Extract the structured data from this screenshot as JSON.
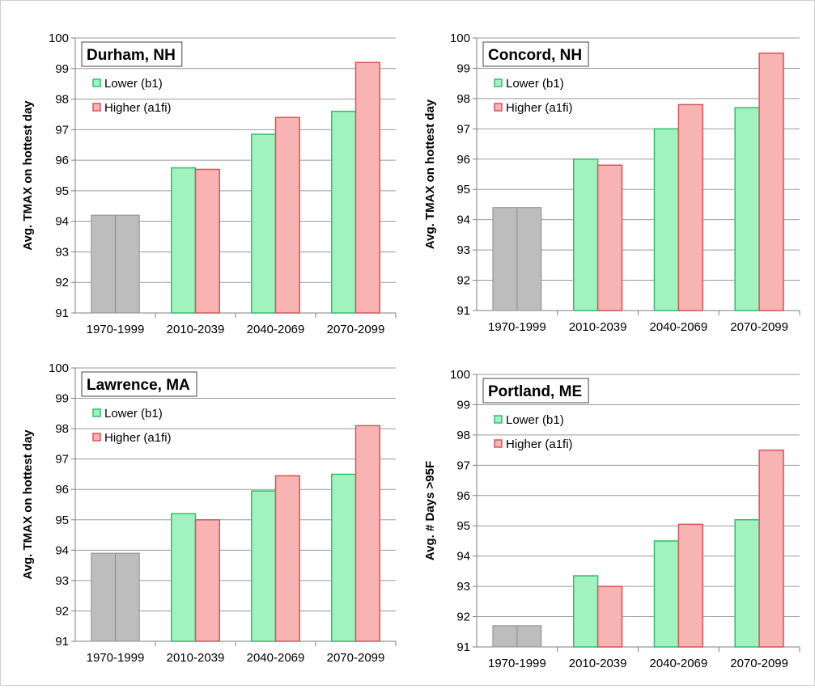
{
  "chart_data": [
    {
      "type": "bar",
      "title": "Durham, NH",
      "ylabel": "Avg. TMAX on hottest day",
      "xlabel": "",
      "ylim": [
        91,
        100
      ],
      "yticks": [
        91,
        92,
        93,
        94,
        95,
        96,
        97,
        98,
        99,
        100
      ],
      "categories": [
        "1970-1999",
        "2010-2039",
        "2040-2069",
        "2070-2099"
      ],
      "historical": {
        "category": "1970-1999",
        "value": 94.2
      },
      "series": [
        {
          "name": "Lower (b1)",
          "values": [
            null,
            95.75,
            96.85,
            97.6
          ]
        },
        {
          "name": "Higher (a1fi)",
          "values": [
            null,
            95.7,
            97.4,
            99.2
          ]
        }
      ],
      "grid": true,
      "legend": "top-left"
    },
    {
      "type": "bar",
      "title": "Concord, NH",
      "ylabel": "Avg. TMAX on hottest day",
      "xlabel": "",
      "ylim": [
        91,
        100
      ],
      "yticks": [
        91,
        92,
        93,
        94,
        95,
        96,
        97,
        98,
        99,
        100
      ],
      "categories": [
        "1970-1999",
        "2010-2039",
        "2040-2069",
        "2070-2099"
      ],
      "historical": {
        "category": "1970-1999",
        "value": 94.4
      },
      "series": [
        {
          "name": "Lower (b1)",
          "values": [
            null,
            96.0,
            97.0,
            97.7
          ]
        },
        {
          "name": "Higher (a1fi)",
          "values": [
            null,
            95.8,
            97.8,
            99.5
          ]
        }
      ],
      "grid": true,
      "legend": "top-left"
    },
    {
      "type": "bar",
      "title": "Lawrence, MA",
      "ylabel": "Avg. TMAX on hottest day",
      "xlabel": "",
      "ylim": [
        91,
        100
      ],
      "yticks": [
        91,
        92,
        93,
        94,
        95,
        96,
        97,
        98,
        99,
        100
      ],
      "categories": [
        "1970-1999",
        "2010-2039",
        "2040-2069",
        "2070-2099"
      ],
      "historical": {
        "category": "1970-1999",
        "value": 93.9
      },
      "series": [
        {
          "name": "Lower (b1)",
          "values": [
            null,
            95.2,
            95.95,
            96.5
          ]
        },
        {
          "name": "Higher (a1fi)",
          "values": [
            null,
            95.0,
            96.45,
            98.1
          ]
        }
      ],
      "grid": true,
      "legend": "top-left"
    },
    {
      "type": "bar",
      "title": "Portland, ME",
      "ylabel": "Avg. # Days >95F",
      "xlabel": "",
      "ylim": [
        91,
        100
      ],
      "yticks": [
        91,
        92,
        93,
        94,
        95,
        96,
        97,
        98,
        99,
        100
      ],
      "categories": [
        "1970-1999",
        "2010-2039",
        "2040-2069",
        "2070-2099"
      ],
      "historical": {
        "category": "1970-1999",
        "value": 91.7
      },
      "series": [
        {
          "name": "Lower (b1)",
          "values": [
            null,
            93.35,
            94.5,
            95.2
          ]
        },
        {
          "name": "Higher (a1fi)",
          "values": [
            null,
            93.0,
            95.05,
            97.5
          ]
        }
      ],
      "grid": true,
      "legend": "top-left"
    }
  ],
  "colors": {
    "historical_fill": "#bdbdbd",
    "historical_stroke": "#8c8c8c",
    "lower_fill": "#a2f2bf",
    "lower_stroke": "#2fbf6a",
    "higher_fill": "#f8b3b3",
    "higher_stroke": "#d7545a",
    "gridline": "#9a9a9a",
    "axis": "#7f7f7f",
    "text": "#000000"
  }
}
